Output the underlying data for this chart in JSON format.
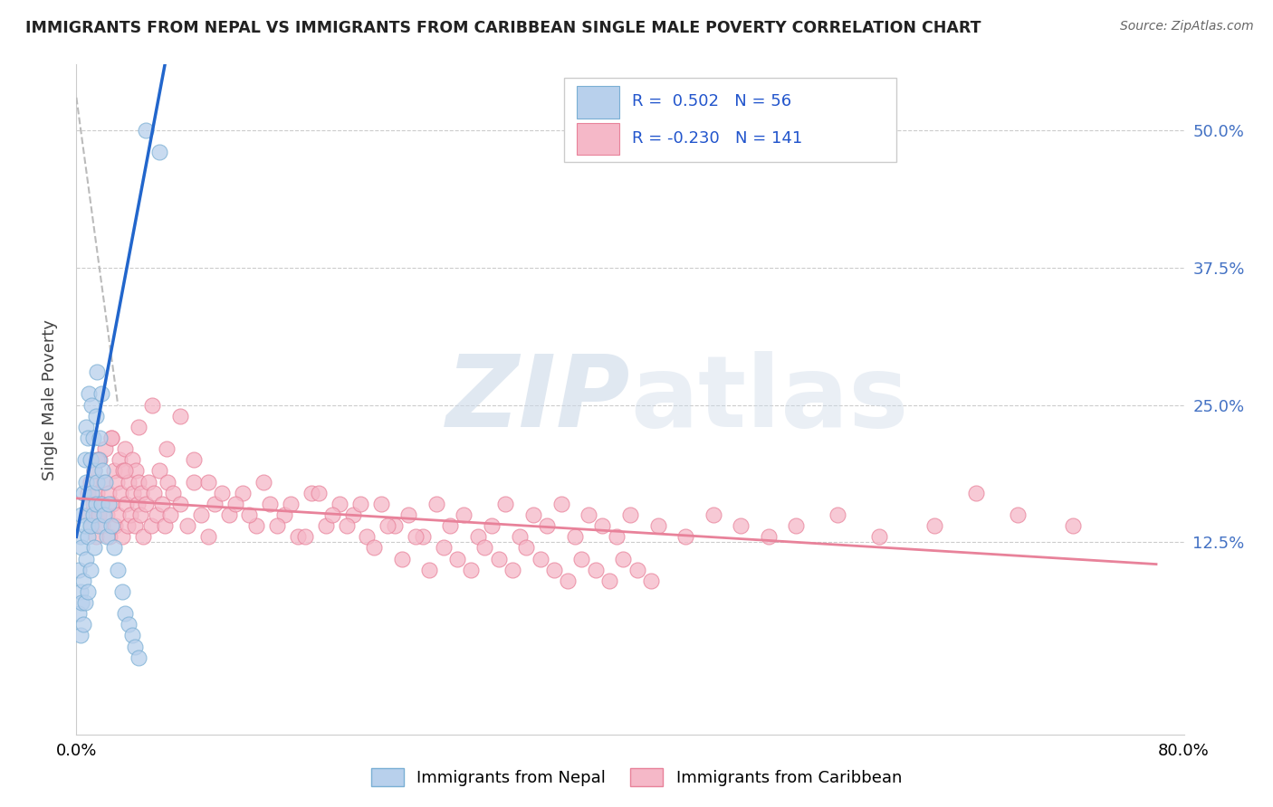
{
  "title": "IMMIGRANTS FROM NEPAL VS IMMIGRANTS FROM CARIBBEAN SINGLE MALE POVERTY CORRELATION CHART",
  "source": "Source: ZipAtlas.com",
  "ylabel": "Single Male Poverty",
  "ytick_values": [
    0.125,
    0.25,
    0.375,
    0.5
  ],
  "xlim": [
    0.0,
    0.8
  ],
  "ylim": [
    -0.05,
    0.56
  ],
  "nepal_R": 0.502,
  "nepal_N": 56,
  "caribbean_R": -0.23,
  "caribbean_N": 141,
  "nepal_color": "#b8d0ec",
  "nepal_edge_color": "#7aafd4",
  "caribbean_color": "#f5b8c8",
  "caribbean_edge_color": "#e8829a",
  "nepal_line_color": "#2266cc",
  "caribbean_line_color": "#e8829a",
  "watermark_color": "#ccd9e8",
  "background_color": "#ffffff",
  "grid_color": "#cccccc",
  "nepal_scatter_x": [
    0.002,
    0.002,
    0.003,
    0.003,
    0.003,
    0.004,
    0.004,
    0.004,
    0.005,
    0.005,
    0.005,
    0.006,
    0.006,
    0.006,
    0.007,
    0.007,
    0.007,
    0.008,
    0.008,
    0.008,
    0.009,
    0.009,
    0.01,
    0.01,
    0.01,
    0.011,
    0.011,
    0.012,
    0.012,
    0.013,
    0.013,
    0.014,
    0.014,
    0.015,
    0.015,
    0.016,
    0.016,
    0.017,
    0.018,
    0.018,
    0.019,
    0.02,
    0.021,
    0.022,
    0.023,
    0.025,
    0.027,
    0.03,
    0.033,
    0.035,
    0.038,
    0.04,
    0.042,
    0.045,
    0.05,
    0.06
  ],
  "nepal_scatter_y": [
    0.1,
    0.06,
    0.08,
    0.13,
    0.04,
    0.12,
    0.07,
    0.15,
    0.09,
    0.17,
    0.05,
    0.14,
    0.2,
    0.07,
    0.11,
    0.18,
    0.23,
    0.13,
    0.22,
    0.08,
    0.16,
    0.26,
    0.14,
    0.2,
    0.1,
    0.17,
    0.25,
    0.15,
    0.22,
    0.19,
    0.12,
    0.24,
    0.16,
    0.18,
    0.28,
    0.2,
    0.14,
    0.22,
    0.16,
    0.26,
    0.19,
    0.15,
    0.18,
    0.13,
    0.16,
    0.14,
    0.12,
    0.1,
    0.08,
    0.06,
    0.05,
    0.04,
    0.03,
    0.02,
    0.5,
    0.48
  ],
  "caribbean_scatter_x": [
    0.008,
    0.009,
    0.01,
    0.011,
    0.012,
    0.013,
    0.014,
    0.015,
    0.016,
    0.017,
    0.018,
    0.019,
    0.02,
    0.021,
    0.022,
    0.023,
    0.024,
    0.025,
    0.026,
    0.027,
    0.028,
    0.029,
    0.03,
    0.031,
    0.032,
    0.033,
    0.034,
    0.035,
    0.036,
    0.037,
    0.038,
    0.039,
    0.04,
    0.041,
    0.042,
    0.043,
    0.044,
    0.045,
    0.046,
    0.047,
    0.048,
    0.05,
    0.052,
    0.054,
    0.056,
    0.058,
    0.06,
    0.062,
    0.064,
    0.066,
    0.068,
    0.07,
    0.075,
    0.08,
    0.085,
    0.09,
    0.095,
    0.1,
    0.11,
    0.12,
    0.13,
    0.14,
    0.15,
    0.16,
    0.17,
    0.18,
    0.19,
    0.2,
    0.21,
    0.22,
    0.23,
    0.24,
    0.25,
    0.26,
    0.27,
    0.28,
    0.29,
    0.3,
    0.31,
    0.32,
    0.33,
    0.34,
    0.35,
    0.36,
    0.37,
    0.38,
    0.39,
    0.4,
    0.42,
    0.44,
    0.46,
    0.48,
    0.5,
    0.52,
    0.55,
    0.58,
    0.62,
    0.65,
    0.68,
    0.72,
    0.015,
    0.025,
    0.035,
    0.045,
    0.055,
    0.065,
    0.075,
    0.085,
    0.095,
    0.105,
    0.115,
    0.125,
    0.135,
    0.145,
    0.155,
    0.165,
    0.175,
    0.185,
    0.195,
    0.205,
    0.215,
    0.225,
    0.235,
    0.245,
    0.255,
    0.265,
    0.275,
    0.285,
    0.295,
    0.305,
    0.315,
    0.325,
    0.335,
    0.345,
    0.355,
    0.365,
    0.375,
    0.385,
    0.395,
    0.405,
    0.415
  ],
  "caribbean_scatter_y": [
    0.17,
    0.15,
    0.18,
    0.14,
    0.16,
    0.19,
    0.13,
    0.17,
    0.15,
    0.2,
    0.16,
    0.14,
    0.18,
    0.21,
    0.15,
    0.17,
    0.13,
    0.22,
    0.16,
    0.19,
    0.14,
    0.18,
    0.15,
    0.2,
    0.17,
    0.13,
    0.19,
    0.21,
    0.16,
    0.14,
    0.18,
    0.15,
    0.2,
    0.17,
    0.14,
    0.19,
    0.16,
    0.18,
    0.15,
    0.17,
    0.13,
    0.16,
    0.18,
    0.14,
    0.17,
    0.15,
    0.19,
    0.16,
    0.14,
    0.18,
    0.15,
    0.17,
    0.16,
    0.14,
    0.18,
    0.15,
    0.13,
    0.16,
    0.15,
    0.17,
    0.14,
    0.16,
    0.15,
    0.13,
    0.17,
    0.14,
    0.16,
    0.15,
    0.13,
    0.16,
    0.14,
    0.15,
    0.13,
    0.16,
    0.14,
    0.15,
    0.13,
    0.14,
    0.16,
    0.13,
    0.15,
    0.14,
    0.16,
    0.13,
    0.15,
    0.14,
    0.13,
    0.15,
    0.14,
    0.13,
    0.15,
    0.14,
    0.13,
    0.14,
    0.15,
    0.13,
    0.14,
    0.17,
    0.15,
    0.14,
    0.2,
    0.22,
    0.19,
    0.23,
    0.25,
    0.21,
    0.24,
    0.2,
    0.18,
    0.17,
    0.16,
    0.15,
    0.18,
    0.14,
    0.16,
    0.13,
    0.17,
    0.15,
    0.14,
    0.16,
    0.12,
    0.14,
    0.11,
    0.13,
    0.1,
    0.12,
    0.11,
    0.1,
    0.12,
    0.11,
    0.1,
    0.12,
    0.11,
    0.1,
    0.09,
    0.11,
    0.1,
    0.09,
    0.11,
    0.1,
    0.09
  ]
}
